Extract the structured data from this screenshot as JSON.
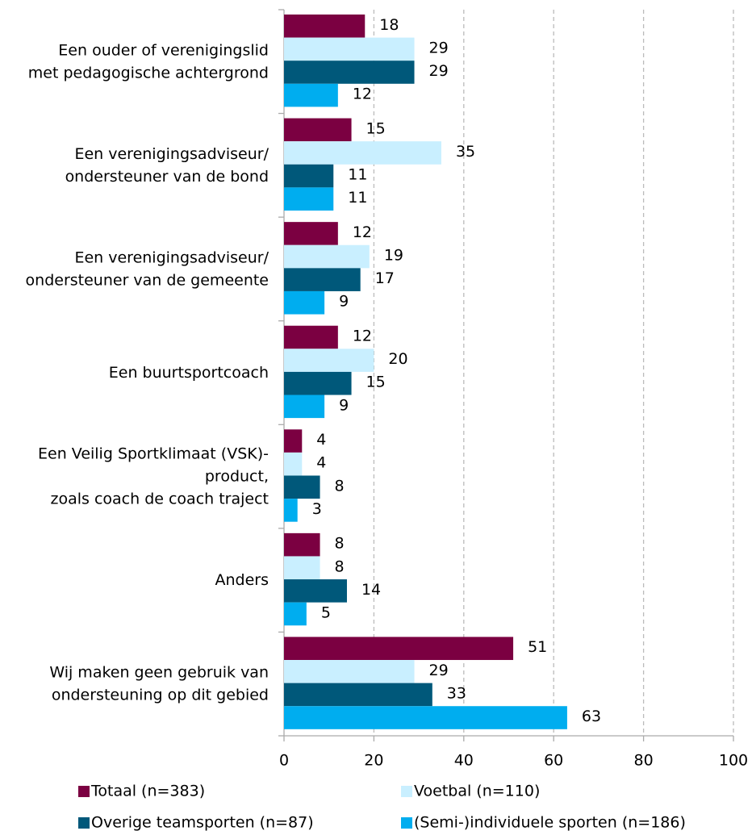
{
  "chart_data": {
    "type": "hbar",
    "categories": [
      "Een ouder of verenigingslid\nmet pedagogische achtergrond",
      "Een verenigingsadviseur/\nondersteuner van de bond",
      "Een verenigingsadviseur/\nondersteuner van de gemeente",
      "Een buurtsportcoach",
      "Een Veilig Sportklimaat (VSK)-\nproduct,\nzoals coach de coach traject",
      "Anders",
      "Wij maken geen gebruik van\nondersteuning op dit gebied"
    ],
    "series": [
      {
        "name": "Totaal (n=383)",
        "color": "#7b0041",
        "values": [
          18,
          15,
          12,
          12,
          4,
          8,
          51
        ]
      },
      {
        "name": "Voetbal (n=110)",
        "color": "#c9efff",
        "values": [
          29,
          35,
          19,
          20,
          4,
          8,
          29
        ]
      },
      {
        "name": "Overige teamsporten (n=87)",
        "color": "#00587a",
        "values": [
          29,
          11,
          17,
          15,
          8,
          14,
          33
        ]
      },
      {
        "name": "(Semi-)individuele sporten (n=186)",
        "color": "#00adef",
        "values": [
          12,
          11,
          9,
          9,
          3,
          5,
          63
        ]
      }
    ],
    "xlim": [
      0,
      100
    ],
    "xticks": [
      0,
      20,
      40,
      60,
      80,
      100
    ],
    "grid": true,
    "legend": "bottom"
  }
}
